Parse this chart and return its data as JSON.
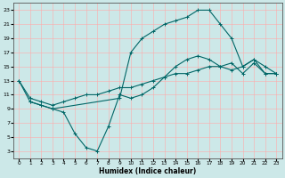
{
  "title": "",
  "xlabel": "Humidex (Indice chaleur)",
  "ylabel": "",
  "bg_color": "#cce8e8",
  "grid_color": "#ffaaaa",
  "line_color": "#006666",
  "xlim": [
    -0.5,
    23.5
  ],
  "ylim": [
    2,
    24
  ],
  "xticks": [
    0,
    1,
    2,
    3,
    4,
    5,
    6,
    7,
    8,
    9,
    10,
    11,
    12,
    13,
    14,
    15,
    16,
    17,
    18,
    19,
    20,
    21,
    22,
    23
  ],
  "yticks": [
    3,
    5,
    7,
    9,
    11,
    13,
    15,
    17,
    19,
    21,
    23
  ],
  "line1_x": [
    0,
    1,
    2,
    3,
    4,
    5,
    6,
    7,
    8,
    9,
    10,
    11,
    12,
    13,
    14,
    15,
    16,
    17,
    18,
    19,
    20,
    21,
    22,
    23
  ],
  "line1_y": [
    13,
    10,
    9.5,
    9,
    8.5,
    5.5,
    3.5,
    3,
    6.5,
    11,
    10.5,
    11,
    12,
    13.5,
    15,
    16,
    16.5,
    16,
    15,
    14.5,
    15,
    16,
    14,
    14
  ],
  "line2_x": [
    0,
    1,
    2,
    3,
    4,
    5,
    6,
    7,
    8,
    9,
    10,
    11,
    12,
    13,
    14,
    15,
    16,
    17,
    18,
    19,
    20,
    21,
    22,
    23
  ],
  "line2_y": [
    13,
    10.5,
    10,
    9.5,
    10,
    10.5,
    11,
    11,
    11.5,
    12,
    12,
    12.5,
    13,
    13.5,
    14,
    14,
    14.5,
    15,
    15,
    15.5,
    14,
    15.5,
    14,
    14
  ],
  "line3_x": [
    1,
    2,
    3,
    9,
    10,
    11,
    12,
    13,
    14,
    15,
    16,
    17,
    18,
    19,
    20,
    21,
    22,
    23
  ],
  "line3_y": [
    10,
    9.5,
    9,
    10.5,
    17,
    19,
    20,
    21,
    21.5,
    22,
    23,
    23,
    21,
    19,
    15,
    16,
    15,
    14
  ]
}
